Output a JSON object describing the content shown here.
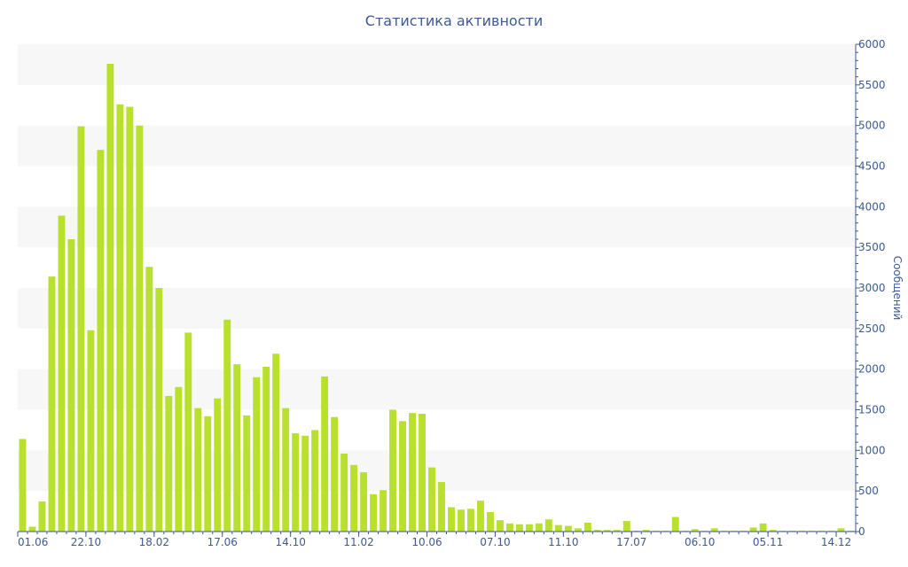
{
  "chart_data": {
    "type": "bar",
    "title": "Статистика активности",
    "ylabel": "Сообщений",
    "xlabel": "",
    "ylim": [
      0,
      6000
    ],
    "yticks": [
      0,
      500,
      1000,
      1500,
      2000,
      2500,
      3000,
      3500,
      4000,
      4500,
      5000,
      5500,
      6000
    ],
    "grid": "alternating horizontal bands",
    "y_axis_position": "right",
    "bar_color": "#b8e02c",
    "band_color": "#f7f7f7",
    "text_color": "#3d5a93",
    "xtick_labels": [
      {
        "index": 0,
        "label": "01.06"
      },
      {
        "index": 7,
        "label": "22.10"
      },
      {
        "index": 14,
        "label": "18.02"
      },
      {
        "index": 21,
        "label": "17.06"
      },
      {
        "index": 28,
        "label": "14.10"
      },
      {
        "index": 35,
        "label": "11.02"
      },
      {
        "index": 42,
        "label": "10.06"
      },
      {
        "index": 49,
        "label": "07.10"
      },
      {
        "index": 56,
        "label": "11.10"
      },
      {
        "index": 63,
        "label": "17.07"
      },
      {
        "index": 70,
        "label": "06.10"
      },
      {
        "index": 77,
        "label": "05.11"
      },
      {
        "index": 84,
        "label": "14.12"
      }
    ],
    "values": [
      1140,
      60,
      370,
      3140,
      3890,
      3600,
      4990,
      2480,
      4700,
      5760,
      5260,
      5230,
      5000,
      3260,
      3000,
      1670,
      1780,
      2450,
      1520,
      1420,
      1640,
      2610,
      2060,
      1430,
      1900,
      2030,
      2190,
      1520,
      1210,
      1180,
      1250,
      1910,
      1410,
      960,
      820,
      730,
      460,
      510,
      1500,
      1360,
      1460,
      1450,
      790,
      610,
      300,
      270,
      280,
      380,
      240,
      140,
      100,
      90,
      90,
      100,
      150,
      80,
      70,
      40,
      110,
      20,
      20,
      20,
      130,
      10,
      20,
      10,
      10,
      180,
      10,
      30,
      10,
      40,
      10,
      10,
      10,
      50,
      100,
      20,
      10,
      10,
      10,
      10,
      10,
      10,
      40,
      10
    ]
  }
}
